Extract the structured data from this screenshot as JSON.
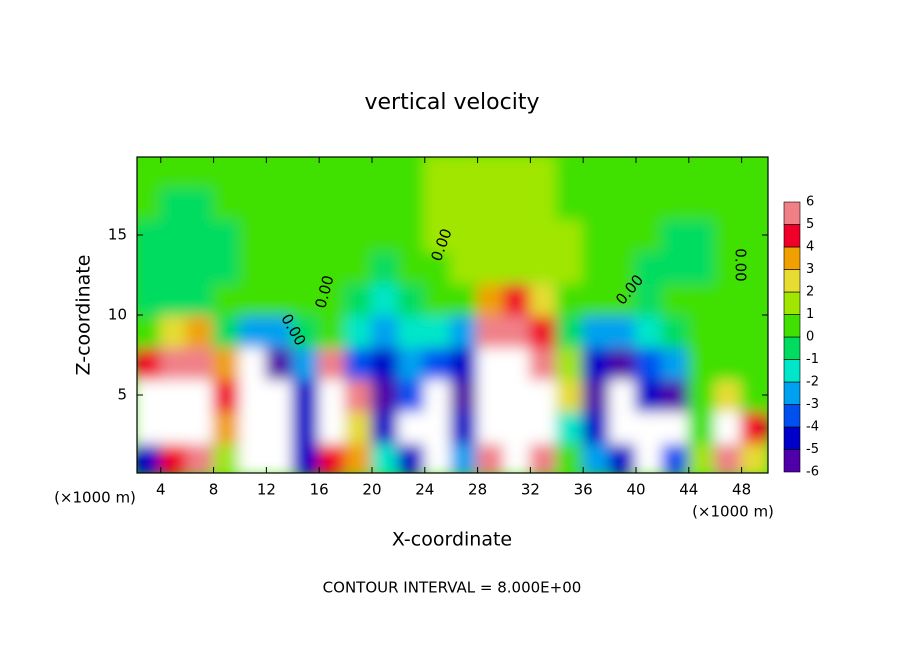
{
  "chart_data": {
    "type": "heatmap",
    "title": "vertical velocity",
    "x_label": "X-coordinate",
    "y_label": "Z-coordinate",
    "x_unit": "(×1000 m)",
    "footer": "CONTOUR INTERVAL = 8.000E+00",
    "contour_label": "0.00",
    "xlim": [
      2.2,
      50
    ],
    "ylim": [
      0.125,
      19.875
    ],
    "xticks": [
      4,
      8,
      12,
      16,
      20,
      24,
      28,
      32,
      36,
      40,
      44,
      48
    ],
    "yticks": [
      5,
      10,
      15
    ],
    "x": [
      3,
      5,
      7,
      9,
      11,
      13,
      15,
      17,
      19,
      21,
      23,
      25,
      27,
      29,
      31,
      33,
      35,
      37,
      39,
      41,
      43,
      45,
      47,
      49
    ],
    "z": [
      1,
      3,
      5,
      7,
      9,
      11,
      13,
      15,
      17,
      19
    ],
    "values": [
      [
        -5,
        4,
        5,
        1,
        -8,
        -8,
        -5,
        4,
        3,
        -2,
        -5,
        -8,
        -3,
        5,
        8,
        5,
        0,
        -3,
        -5,
        -8,
        -4,
        1,
        5,
        2
      ],
      [
        8,
        8,
        8,
        3,
        -8,
        -8,
        -5,
        8,
        2,
        -5,
        -8,
        -8,
        -5,
        8,
        8,
        8,
        -2,
        -5,
        -8,
        -8,
        -8,
        0,
        8,
        4
      ],
      [
        8,
        8,
        8,
        4,
        -8,
        -8,
        -5,
        8,
        5,
        -6,
        -4,
        -8,
        -6,
        8,
        8,
        8,
        2,
        -6,
        -8,
        -5,
        -6,
        0,
        2,
        0
      ],
      [
        4,
        5,
        6,
        3,
        -8,
        -6,
        -3,
        5,
        -4,
        -5,
        -3,
        -4,
        -5,
        8,
        8,
        6,
        1,
        -5,
        -6,
        -4,
        -3,
        0,
        0,
        0
      ],
      [
        0,
        2,
        3,
        -1,
        -3,
        -3,
        -1,
        0,
        -2,
        -3,
        -2,
        -2,
        -3,
        6,
        6,
        4,
        -1,
        -3,
        -3,
        -2,
        -1,
        0,
        0,
        0
      ],
      [
        -1,
        -1,
        -1,
        0,
        0,
        0,
        0,
        0,
        -1,
        -2,
        -1,
        0,
        0,
        3,
        4,
        2,
        0,
        0,
        0,
        -1,
        0,
        0,
        0,
        0
      ],
      [
        -1,
        -1,
        -1,
        -1,
        0,
        0,
        0,
        0,
        0,
        -1,
        0,
        0,
        1,
        1,
        1,
        1,
        1,
        0,
        0,
        -1,
        -1,
        -1,
        0,
        0
      ],
      [
        -1,
        -1,
        -1,
        -1,
        0,
        0,
        0,
        0,
        0,
        0,
        0,
        1,
        1,
        1,
        1,
        1,
        1,
        0,
        0,
        0,
        -1,
        -1,
        0,
        0
      ],
      [
        0,
        -1,
        -1,
        0,
        0,
        0,
        0,
        0,
        0,
        0,
        0,
        1,
        1,
        1,
        1,
        1,
        0,
        0,
        0,
        0,
        0,
        0,
        0,
        0
      ],
      [
        0,
        0,
        0,
        0,
        0,
        0,
        0,
        0,
        0,
        0,
        0,
        1,
        1,
        1,
        1,
        1,
        0,
        0,
        0,
        0,
        0,
        0,
        0,
        0
      ]
    ],
    "levels": [
      -6,
      -5,
      -4,
      -3,
      -2,
      -1,
      0,
      1,
      2,
      3,
      4,
      5,
      6
    ],
    "colors": [
      "#5000a8",
      "#0000c8",
      "#0050f0",
      "#00a0f0",
      "#00e6c8",
      "#00dc60",
      "#40e000",
      "#a0e600",
      "#e6dc32",
      "#f0a000",
      "#f00028",
      "#f08088"
    ],
    "out_of_range_color": "#ffffff"
  }
}
